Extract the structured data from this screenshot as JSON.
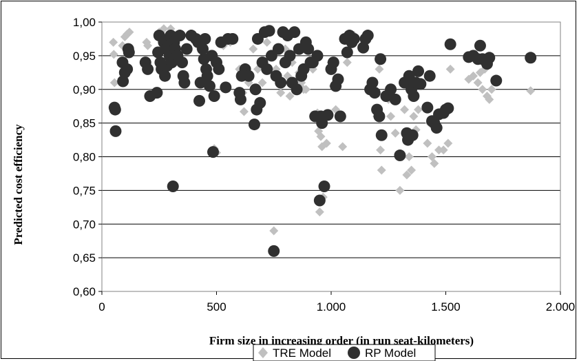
{
  "chart_data": {
    "type": "scatter",
    "title": "",
    "xlabel": "Firm size in increasing order (in run seat-kilometers)",
    "ylabel": "Predicted cost efficiency",
    "xlim": [
      0,
      2000
    ],
    "ylim": [
      0.6,
      1.0
    ],
    "x_ticks": [
      "0",
      "500",
      "1.000",
      "1.500",
      "2.000"
    ],
    "x_tick_values": [
      0,
      500,
      1000,
      1500,
      2000
    ],
    "y_ticks": [
      "0,60",
      "0,65",
      "0,70",
      "0,75",
      "0,80",
      "0,85",
      "0,90",
      "0,95",
      "1,00"
    ],
    "y_tick_values": [
      0.6,
      0.65,
      0.7,
      0.75,
      0.8,
      0.85,
      0.9,
      0.95,
      1.0
    ],
    "grid": "horizontal",
    "legend_position": "bottom-center",
    "series": [
      {
        "name": "TRE Model",
        "marker": "diamond",
        "color": "#c0c0c0",
        "points": [
          [
            50,
            0.97
          ],
          [
            52,
            0.952
          ],
          [
            55,
            0.91
          ],
          [
            90,
            0.965
          ],
          [
            100,
            0.978
          ],
          [
            110,
            0.982
          ],
          [
            120,
            0.985
          ],
          [
            195,
            0.97
          ],
          [
            200,
            0.965
          ],
          [
            250,
            0.985
          ],
          [
            270,
            0.99
          ],
          [
            280,
            0.975
          ],
          [
            300,
            0.99
          ],
          [
            320,
            0.98
          ],
          [
            380,
            0.98
          ],
          [
            410,
            0.97
          ],
          [
            430,
            0.96
          ],
          [
            450,
            0.975
          ],
          [
            470,
            0.95
          ],
          [
            500,
            0.93
          ],
          [
            490,
            0.812
          ],
          [
            500,
            0.806
          ],
          [
            530,
            0.965
          ],
          [
            560,
            0.97
          ],
          [
            600,
            0.93
          ],
          [
            610,
            0.92
          ],
          [
            615,
            0.895
          ],
          [
            620,
            0.867
          ],
          [
            640,
            0.91
          ],
          [
            660,
            0.96
          ],
          [
            680,
            0.93
          ],
          [
            700,
            0.91
          ],
          [
            720,
            0.97
          ],
          [
            740,
            0.95
          ],
          [
            750,
            0.69
          ],
          [
            760,
            0.93
          ],
          [
            780,
            0.895
          ],
          [
            800,
            0.96
          ],
          [
            810,
            0.92
          ],
          [
            820,
            0.89
          ],
          [
            830,
            0.94
          ],
          [
            860,
            0.925
          ],
          [
            870,
            0.91
          ],
          [
            880,
            0.9
          ],
          [
            890,
            0.9
          ],
          [
            900,
            0.96
          ],
          [
            920,
            0.93
          ],
          [
            940,
            0.865
          ],
          [
            945,
            0.838
          ],
          [
            950,
            0.718
          ],
          [
            955,
            0.83
          ],
          [
            960,
            0.815
          ],
          [
            965,
            0.74
          ],
          [
            980,
            0.82
          ],
          [
            1000,
            0.94
          ],
          [
            1010,
            0.905
          ],
          [
            1020,
            0.87
          ],
          [
            1040,
            0.86
          ],
          [
            1050,
            0.815
          ],
          [
            1070,
            0.94
          ],
          [
            1100,
            0.98
          ],
          [
            1140,
            0.96
          ],
          [
            1150,
            0.98
          ],
          [
            1200,
            0.86
          ],
          [
            1210,
            0.93
          ],
          [
            1215,
            0.81
          ],
          [
            1220,
            0.78
          ],
          [
            1250,
            0.885
          ],
          [
            1260,
            0.86
          ],
          [
            1280,
            0.835
          ],
          [
            1300,
            0.75
          ],
          [
            1310,
            0.8
          ],
          [
            1320,
            0.87
          ],
          [
            1330,
            0.773
          ],
          [
            1340,
            0.8
          ],
          [
            1350,
            0.78
          ],
          [
            1360,
            0.86
          ],
          [
            1370,
            0.84
          ],
          [
            1380,
            0.87
          ],
          [
            1420,
            0.82
          ],
          [
            1430,
            0.85
          ],
          [
            1440,
            0.8
          ],
          [
            1450,
            0.79
          ],
          [
            1470,
            0.81
          ],
          [
            1490,
            0.81
          ],
          [
            1510,
            0.82
          ],
          [
            1520,
            0.93
          ],
          [
            1600,
            0.915
          ],
          [
            1620,
            0.92
          ],
          [
            1640,
            0.91
          ],
          [
            1650,
            0.925
          ],
          [
            1660,
            0.9
          ],
          [
            1670,
            0.93
          ],
          [
            1680,
            0.89
          ],
          [
            1690,
            0.885
          ],
          [
            1700,
            0.9
          ],
          [
            1870,
            0.898
          ]
        ]
      },
      {
        "name": "RP Model",
        "marker": "circle",
        "color": "#303030",
        "points": [
          [
            55,
            0.873
          ],
          [
            58,
            0.87
          ],
          [
            60,
            0.838
          ],
          [
            90,
            0.94
          ],
          [
            92,
            0.912
          ],
          [
            100,
            0.925
          ],
          [
            110,
            0.93
          ],
          [
            115,
            0.96
          ],
          [
            118,
            0.955
          ],
          [
            190,
            0.94
          ],
          [
            200,
            0.93
          ],
          [
            210,
            0.89
          ],
          [
            240,
            0.895
          ],
          [
            245,
            0.955
          ],
          [
            250,
            0.98
          ],
          [
            255,
            0.94
          ],
          [
            260,
            0.93
          ],
          [
            270,
            0.97
          ],
          [
            275,
            0.92
          ],
          [
            280,
            0.96
          ],
          [
            285,
            0.935
          ],
          [
            290,
            0.965
          ],
          [
            295,
            0.95
          ],
          [
            300,
            0.98
          ],
          [
            305,
            0.94
          ],
          [
            310,
            0.756
          ],
          [
            315,
            0.97
          ],
          [
            320,
            0.96
          ],
          [
            330,
            0.95
          ],
          [
            340,
            0.98
          ],
          [
            350,
            0.94
          ],
          [
            355,
            0.92
          ],
          [
            360,
            0.91
          ],
          [
            370,
            0.96
          ],
          [
            390,
            0.98
          ],
          [
            410,
            0.975
          ],
          [
            420,
            0.97
          ],
          [
            425,
            0.883
          ],
          [
            430,
            0.91
          ],
          [
            440,
            0.96
          ],
          [
            445,
            0.945
          ],
          [
            450,
            0.975
          ],
          [
            455,
            0.93
          ],
          [
            460,
            0.92
          ],
          [
            470,
            0.905
          ],
          [
            480,
            0.95
          ],
          [
            485,
            0.807
          ],
          [
            490,
            0.89
          ],
          [
            500,
            0.94
          ],
          [
            510,
            0.93
          ],
          [
            520,
            0.97
          ],
          [
            540,
            0.903
          ],
          [
            550,
            0.975
          ],
          [
            570,
            0.975
          ],
          [
            600,
            0.895
          ],
          [
            605,
            0.885
          ],
          [
            610,
            0.92
          ],
          [
            625,
            0.93
          ],
          [
            640,
            0.92
          ],
          [
            665,
            0.848
          ],
          [
            670,
            0.9
          ],
          [
            675,
            0.87
          ],
          [
            680,
            0.975
          ],
          [
            690,
            0.88
          ],
          [
            700,
            0.94
          ],
          [
            710,
            0.985
          ],
          [
            720,
            0.93
          ],
          [
            730,
            0.987
          ],
          [
            740,
            0.95
          ],
          [
            750,
            0.66
          ],
          [
            760,
            0.92
          ],
          [
            770,
            0.96
          ],
          [
            780,
            0.91
          ],
          [
            790,
            0.985
          ],
          [
            800,
            0.94
          ],
          [
            810,
            0.98
          ],
          [
            820,
            0.95
          ],
          [
            830,
            0.91
          ],
          [
            840,
            0.985
          ],
          [
            850,
            0.9
          ],
          [
            860,
            0.96
          ],
          [
            870,
            0.92
          ],
          [
            880,
            0.93
          ],
          [
            890,
            0.97
          ],
          [
            900,
            0.96
          ],
          [
            910,
            0.94
          ],
          [
            920,
            0.94
          ],
          [
            930,
            0.86
          ],
          [
            940,
            0.95
          ],
          [
            950,
            0.735
          ],
          [
            955,
            0.86
          ],
          [
            960,
            0.85
          ],
          [
            970,
            0.756
          ],
          [
            985,
            0.862
          ],
          [
            1000,
            0.93
          ],
          [
            1010,
            0.94
          ],
          [
            1020,
            0.905
          ],
          [
            1030,
            0.915
          ],
          [
            1040,
            0.86
          ],
          [
            1060,
            0.975
          ],
          [
            1070,
            0.955
          ],
          [
            1080,
            0.98
          ],
          [
            1090,
            0.97
          ],
          [
            1100,
            0.975
          ],
          [
            1140,
            0.962
          ],
          [
            1150,
            0.975
          ],
          [
            1160,
            0.98
          ],
          [
            1170,
            0.9
          ],
          [
            1180,
            0.91
          ],
          [
            1190,
            0.895
          ],
          [
            1200,
            0.87
          ],
          [
            1210,
            0.86
          ],
          [
            1215,
            0.945
          ],
          [
            1220,
            0.832
          ],
          [
            1240,
            0.89
          ],
          [
            1260,
            0.9
          ],
          [
            1280,
            0.885
          ],
          [
            1300,
            0.802
          ],
          [
            1320,
            0.91
          ],
          [
            1330,
            0.835
          ],
          [
            1335,
            0.825
          ],
          [
            1340,
            0.92
          ],
          [
            1350,
            0.9
          ],
          [
            1355,
            0.832
          ],
          [
            1360,
            0.89
          ],
          [
            1370,
            0.91
          ],
          [
            1380,
            0.927
          ],
          [
            1390,
            0.908
          ],
          [
            1420,
            0.873
          ],
          [
            1430,
            0.92
          ],
          [
            1440,
            0.853
          ],
          [
            1450,
            0.85
          ],
          [
            1460,
            0.843
          ],
          [
            1470,
            0.863
          ],
          [
            1490,
            0.865
          ],
          [
            1500,
            0.87
          ],
          [
            1510,
            0.872
          ],
          [
            1520,
            0.967
          ],
          [
            1600,
            0.948
          ],
          [
            1620,
            0.95
          ],
          [
            1640,
            0.945
          ],
          [
            1650,
            0.965
          ],
          [
            1660,
            0.945
          ],
          [
            1680,
            0.938
          ],
          [
            1690,
            0.947
          ],
          [
            1720,
            0.913
          ],
          [
            1870,
            0.947
          ]
        ]
      }
    ]
  }
}
